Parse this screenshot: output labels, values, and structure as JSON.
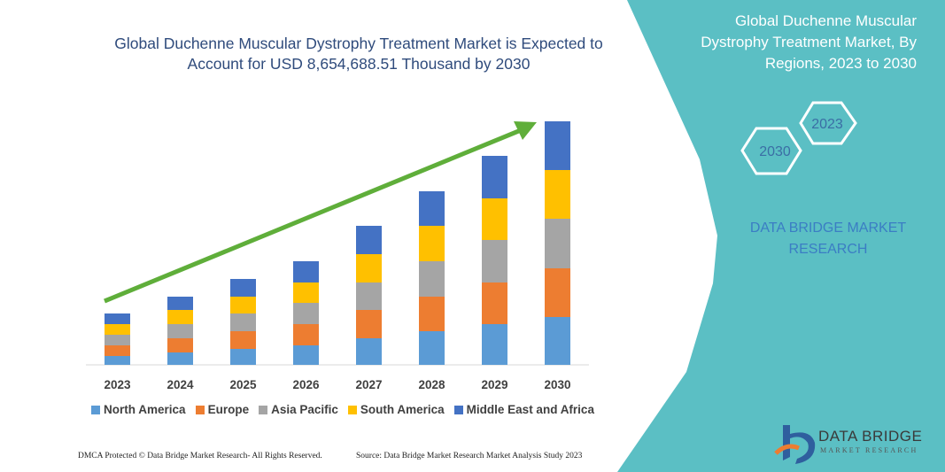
{
  "chart_data": {
    "type": "bar",
    "stacked": true,
    "title": "Global Duchenne Muscular Dystrophy Treatment Market is Expected to Account for USD 8,654,688.51 Thousand by 2030",
    "categories": [
      "2023",
      "2024",
      "2025",
      "2026",
      "2027",
      "2028",
      "2029",
      "2030"
    ],
    "series": [
      {
        "name": "North America",
        "color": "#5b9bd5",
        "values": [
          10,
          14,
          18,
          22,
          30,
          38,
          46,
          54
        ]
      },
      {
        "name": "Europe",
        "color": "#ed7d31",
        "values": [
          12,
          16,
          20,
          24,
          32,
          39,
          47,
          55
        ]
      },
      {
        "name": "Asia Pacific",
        "color": "#a5a5a5",
        "values": [
          12,
          16,
          20,
          24,
          31,
          40,
          48,
          56
        ]
      },
      {
        "name": "South America",
        "color": "#ffc000",
        "values": [
          12,
          16,
          19,
          23,
          32,
          40,
          47,
          55
        ]
      },
      {
        "name": "Middle East and Africa",
        "color": "#4472c4",
        "values": [
          12,
          15,
          20,
          24,
          32,
          39,
          48,
          55
        ]
      }
    ],
    "ylim": [
      0,
      280
    ],
    "legend": "bottom"
  },
  "panel": {
    "title": "Global Duchenne Muscular Dystrophy Treatment Market, By Regions, 2023 to 2030",
    "hexagons": [
      "2023",
      "2030"
    ],
    "brand": "DATA BRIDGE MARKET RESEARCH"
  },
  "footer": {
    "copyright": "DMCA Protected © Data Bridge Market Research- All Rights Reserved.",
    "source": "Source: Data Bridge Market Research  Market Analysis Study 2023"
  },
  "logo": {
    "name": "DATA BRIDGE",
    "subtitle": "MARKET RESEARCH"
  }
}
